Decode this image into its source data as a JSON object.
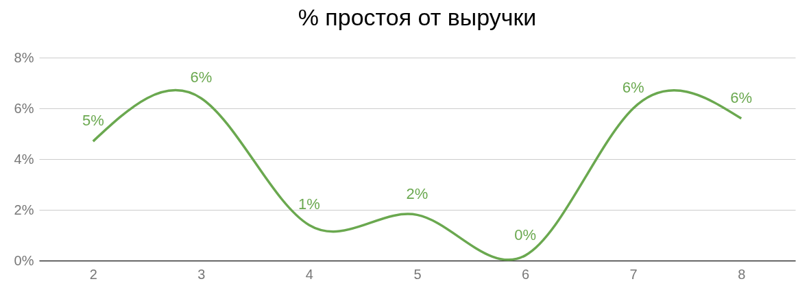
{
  "chart_data": {
    "type": "line",
    "title": "% простоя от выручки",
    "categories": [
      "2",
      "3",
      "4",
      "5",
      "6",
      "7",
      "8"
    ],
    "series": [
      {
        "color": "#6aa84f",
        "values": [
          4.7,
          6.4,
          1.4,
          1.8,
          0.2,
          6.0,
          5.6
        ],
        "value_labels": [
          "5%",
          "6%",
          "1%",
          "2%",
          "0%",
          "6%",
          "6%"
        ]
      }
    ],
    "ylim": [
      0,
      8
    ],
    "yticks": [
      {
        "value": 0,
        "label": "0%"
      },
      {
        "value": 2,
        "label": "2%"
      },
      {
        "value": 4,
        "label": "4%"
      },
      {
        "value": 6,
        "label": "6%"
      },
      {
        "value": 8,
        "label": "8%"
      }
    ],
    "grid": "y"
  }
}
